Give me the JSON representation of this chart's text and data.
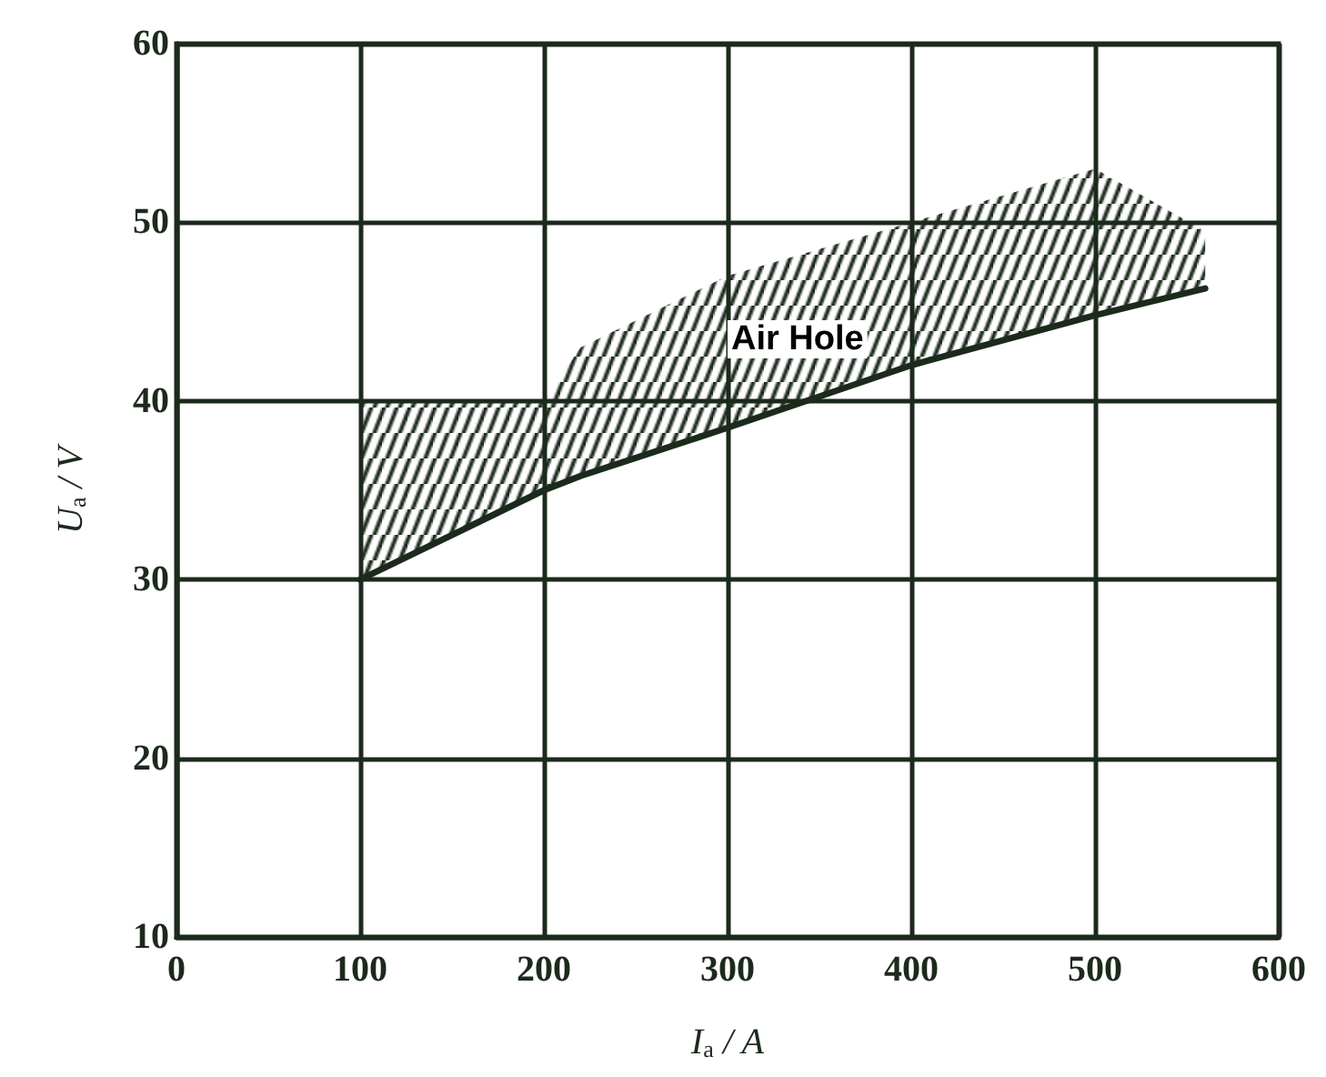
{
  "chart_data": {
    "type": "line",
    "xlabel": "I$_{a}$ / A",
    "ylabel": "U$_{a}$ / V",
    "x": [
      100,
      200,
      220,
      300,
      400,
      500,
      560
    ],
    "series": [
      {
        "color": "#1c2a1c",
        "values": [
          30,
          35,
          35.8,
          38.5,
          42,
          44.8,
          46.3
        ],
        "upper": [
          40,
          40,
          43,
          47,
          50,
          53,
          49.5
        ],
        "lower": [
          30,
          35,
          35.8,
          38.5,
          42,
          44.8,
          46.3
        ]
      }
    ],
    "annotations": [
      "Air Hole"
    ],
    "xlim": [
      0,
      600
    ],
    "xticks": [
      0,
      100,
      200,
      300,
      400,
      500,
      600
    ],
    "ylim": [
      10,
      60
    ],
    "yticks": [
      10,
      20,
      30,
      40,
      50,
      60
    ],
    "grid": true,
    "marker": "none",
    "line_style": "solid"
  }
}
